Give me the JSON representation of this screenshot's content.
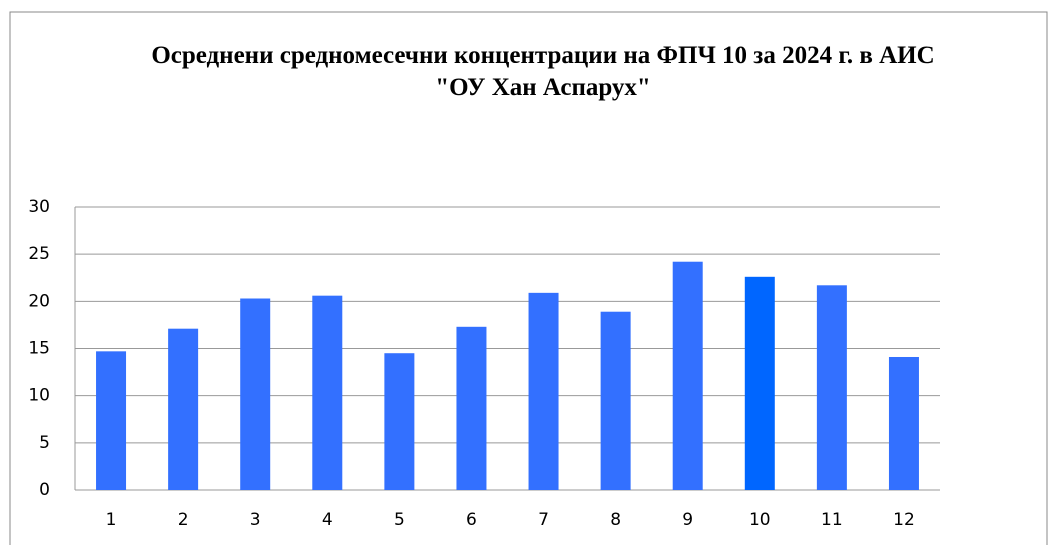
{
  "chart_data": {
    "type": "bar",
    "title": "Осреднени средномесечни концентрации  на ФПЧ 10 за 2024 г. в АИС  \"ОУ Хан  Аспарух\"",
    "categories": [
      "1",
      "2",
      "3",
      "4",
      "5",
      "6",
      "7",
      "8",
      "9",
      "10",
      "11",
      "12"
    ],
    "values": [
      14.7,
      17.1,
      20.3,
      20.6,
      14.5,
      17.3,
      20.9,
      18.9,
      24.2,
      22.6,
      21.7,
      14.1
    ],
    "colors": [
      "#3370ff",
      "#3370ff",
      "#3370ff",
      "#3370ff",
      "#3370ff",
      "#3370ff",
      "#3370ff",
      "#3370ff",
      "#3370ff",
      "#0066ff",
      "#3370ff",
      "#3370ff"
    ],
    "ylim": [
      0,
      30
    ],
    "yticks": [
      0,
      5,
      10,
      15,
      20,
      25,
      30
    ],
    "grid": true
  }
}
